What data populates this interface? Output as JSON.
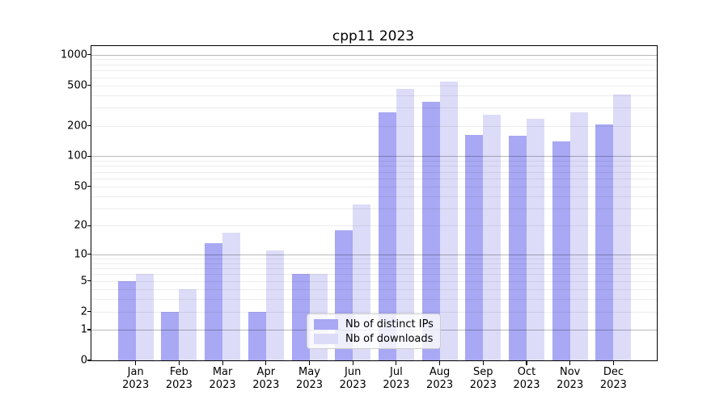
{
  "figure": {
    "title": "cpp11 2023",
    "background": "#ffffff"
  },
  "legend": {
    "items": [
      {
        "label": "Nb of distinct IPs",
        "color": "#a8a8f4"
      },
      {
        "label": "Nb of downloads",
        "color": "#dcdcf9"
      }
    ],
    "position": "inside plot, lower middle"
  },
  "y_axis": {
    "tick_values": [
      0,
      1,
      2,
      5,
      10,
      20,
      50,
      100,
      200,
      500,
      1000
    ],
    "tick_labels": [
      "0",
      "1",
      "2",
      "5",
      "10",
      "20",
      "50",
      "100",
      "200",
      "500",
      "1000"
    ],
    "scale": "log10(value+1)",
    "top_value": 1215
  },
  "x_axis": {
    "months": [
      "Jan",
      "Feb",
      "Mar",
      "Apr",
      "May",
      "Jun",
      "Jul",
      "Aug",
      "Sep",
      "Oct",
      "Nov",
      "Dec"
    ],
    "year": "2023"
  },
  "chart_data": {
    "type": "bar",
    "title": "cpp11 2023",
    "categories": [
      "Jan 2023",
      "Feb 2023",
      "Mar 2023",
      "Apr 2023",
      "May 2023",
      "Jun 2023",
      "Jul 2023",
      "Aug 2023",
      "Sep 2023",
      "Oct 2023",
      "Nov 2023",
      "Dec 2023"
    ],
    "series": [
      {
        "name": "Nb of distinct IPs",
        "color": "#a8a8f4",
        "values": [
          5,
          2,
          13,
          2,
          6,
          18,
          270,
          345,
          162,
          160,
          139,
          205
        ]
      },
      {
        "name": "Nb of downloads",
        "color": "#dcdcf9",
        "values": [
          6,
          4,
          17,
          11,
          6,
          33,
          465,
          540,
          257,
          234,
          270,
          408
        ]
      }
    ],
    "ylabel": "",
    "xlabel": "",
    "yscale": "log1p (ticks at 0,1,2,5,10,20,50,100,200,500,1000)",
    "ylim": [
      0,
      1215
    ],
    "grid": "horizontal; faint minors at 2-9 per decade, darker majors at powers of 10",
    "legend_position": "lower center inside plot"
  }
}
